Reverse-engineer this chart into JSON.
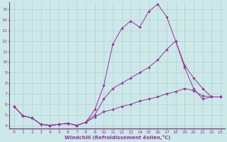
{
  "xlabel": "Windchill (Refroidissement éolien,°C)",
  "bg_color": "#cce8e8",
  "grid_color": "#b0d0d0",
  "line_color": "#993399",
  "spine_color": "#7755aa",
  "xlim": [
    -0.5,
    23.5
  ],
  "ylim": [
    3.7,
    15.7
  ],
  "yticks": [
    4,
    5,
    6,
    7,
    8,
    9,
    10,
    11,
    12,
    13,
    14,
    15
  ],
  "xticks": [
    0,
    1,
    2,
    3,
    4,
    5,
    6,
    7,
    8,
    9,
    10,
    11,
    12,
    13,
    14,
    15,
    16,
    17,
    18,
    19,
    20,
    21,
    22,
    23
  ],
  "line1_x": [
    0,
    1,
    2,
    3,
    4,
    5,
    6,
    7,
    8,
    9,
    10,
    11,
    12,
    13,
    14,
    15,
    16,
    17,
    18,
    19,
    20,
    21,
    22,
    23
  ],
  "line1_y": [
    5.8,
    4.9,
    4.7,
    4.1,
    4.0,
    4.1,
    4.2,
    4.0,
    4.3,
    5.5,
    7.8,
    11.7,
    13.2,
    13.9,
    13.3,
    14.8,
    15.5,
    14.3,
    12.0,
    9.5,
    7.5,
    6.5,
    6.7,
    6.7
  ],
  "line2_x": [
    0,
    1,
    2,
    3,
    4,
    5,
    6,
    7,
    8,
    9,
    10,
    11,
    12,
    13,
    14,
    15,
    16,
    17,
    18,
    19,
    20,
    21,
    22,
    23
  ],
  "line2_y": [
    5.8,
    4.9,
    4.7,
    4.1,
    4.0,
    4.1,
    4.2,
    4.0,
    4.3,
    5.0,
    6.5,
    7.5,
    8.0,
    8.5,
    9.0,
    9.5,
    10.2,
    11.2,
    12.0,
    9.7,
    8.5,
    7.5,
    6.7,
    6.7
  ],
  "line3_x": [
    0,
    1,
    2,
    3,
    4,
    5,
    6,
    7,
    8,
    9,
    10,
    11,
    12,
    13,
    14,
    15,
    16,
    17,
    18,
    19,
    20,
    21,
    22,
    23
  ],
  "line3_y": [
    5.8,
    4.9,
    4.7,
    4.1,
    4.0,
    4.1,
    4.2,
    4.0,
    4.3,
    4.8,
    5.3,
    5.5,
    5.8,
    6.0,
    6.3,
    6.5,
    6.7,
    7.0,
    7.2,
    7.5,
    7.3,
    6.8,
    6.7,
    6.7
  ]
}
